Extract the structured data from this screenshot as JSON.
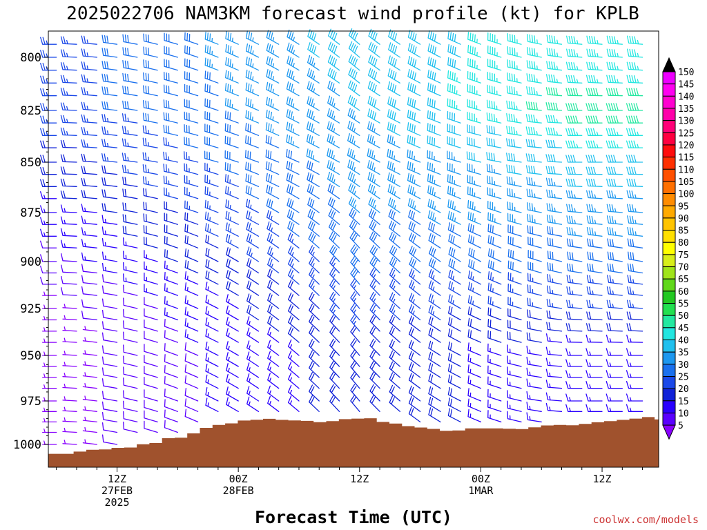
{
  "title": "2025022706 NAM3KM forecast wind profile (kt) for KPLB",
  "credit": "coolwx.com/models",
  "colorbar": {
    "levels": [
      5,
      10,
      15,
      20,
      25,
      30,
      35,
      40,
      45,
      50,
      55,
      60,
      65,
      70,
      75,
      80,
      85,
      90,
      95,
      100,
      105,
      110,
      115,
      120,
      125,
      130,
      135,
      140,
      145,
      150
    ],
    "colors": [
      "#8800ff",
      "#5a00ff",
      "#2a00ff",
      "#1022d8",
      "#1a48e8",
      "#1a70ee",
      "#1d98f0",
      "#20c0ee",
      "#22e6e0",
      "#22e8a0",
      "#22e050",
      "#22c822",
      "#60d81a",
      "#a0e41a",
      "#d8ee1a",
      "#ffff00",
      "#ffe000",
      "#ffc400",
      "#ffaa00",
      "#ff8c00",
      "#ff7000",
      "#ff5000",
      "#ff3000",
      "#ff0c0c",
      "#ff0040",
      "#ff0078",
      "#ff00aa",
      "#ff00d0",
      "#ff00f0",
      "#ee00ff"
    ]
  },
  "chart_data": {
    "type": "wind-barb time-height profile",
    "title": "2025022706 NAM3KM forecast wind profile (kt) for KPLB",
    "xlabel": "Forecast Time (UTC)",
    "ylabel": "",
    "units": "kt",
    "y_scale": "pressure (hPa), reversed",
    "ylim": [
      1012,
      790
    ],
    "yticks": [
      800,
      825,
      850,
      875,
      900,
      925,
      950,
      975,
      1000
    ],
    "xlim_hours": [
      -0.4,
      29.8
    ],
    "xticks": [
      {
        "hour": 3,
        "label": [
          "12Z",
          "27FEB",
          "2025"
        ]
      },
      {
        "hour": 9,
        "label": [
          "00Z",
          "28FEB"
        ]
      },
      {
        "hour": 15,
        "label": [
          "12Z"
        ]
      },
      {
        "hour": 21,
        "label": [
          "00Z",
          "1MAR"
        ]
      },
      {
        "hour": 27,
        "label": [
          "12Z"
        ]
      }
    ],
    "levels_hpa": [
      794,
      800,
      806,
      812,
      818,
      825,
      831,
      837,
      843,
      850,
      856,
      862,
      868,
      875,
      881,
      887,
      893,
      900,
      906,
      912,
      918,
      925,
      931,
      937,
      943,
      950,
      956,
      962,
      968,
      975,
      981,
      987,
      993,
      1000
    ],
    "terrain_pressure_hpa": [
      1005.5,
      1005.5,
      1004.2,
      1003.1,
      1002.9,
      1002,
      1001.8,
      999.9,
      999.2,
      996.4,
      996.1,
      993.6,
      990.4,
      988.7,
      987.8,
      986.2,
      985.7,
      985.2,
      985.8,
      986.1,
      986.4,
      987.1,
      986.5,
      985.4,
      985.1,
      984.9,
      987,
      987.9,
      989.4,
      990.2,
      991,
      992.1,
      991.9,
      990.7,
      990.7,
      990.7,
      990.9,
      991.1,
      990.1,
      989,
      988.7,
      988.9,
      988.1,
      987.2,
      986.5,
      985.8,
      985.1,
      984.2,
      985.5
    ],
    "terrain_note": "terrain surface pressure sampled every 0.625 h from hour -0.4",
    "series": [
      {
        "hour": 0,
        "barbs": [
          [
            825,
            270,
            25
          ],
          [
            850,
            270,
            20
          ],
          [
            875,
            270,
            15
          ],
          [
            900,
            270,
            10
          ],
          [
            925,
            270,
            5
          ]
        ]
      },
      {
        "hour": 15,
        "barbs": [
          [
            800,
            310,
            40
          ],
          [
            850,
            300,
            35
          ],
          [
            900,
            320,
            30
          ],
          [
            950,
            320,
            20
          ]
        ]
      },
      {
        "hour": 26,
        "barbs": [
          [
            800,
            275,
            45
          ],
          [
            825,
            270,
            50
          ],
          [
            850,
            270,
            40
          ],
          [
            900,
            280,
            30
          ],
          [
            950,
            270,
            15
          ]
        ]
      }
    ]
  }
}
